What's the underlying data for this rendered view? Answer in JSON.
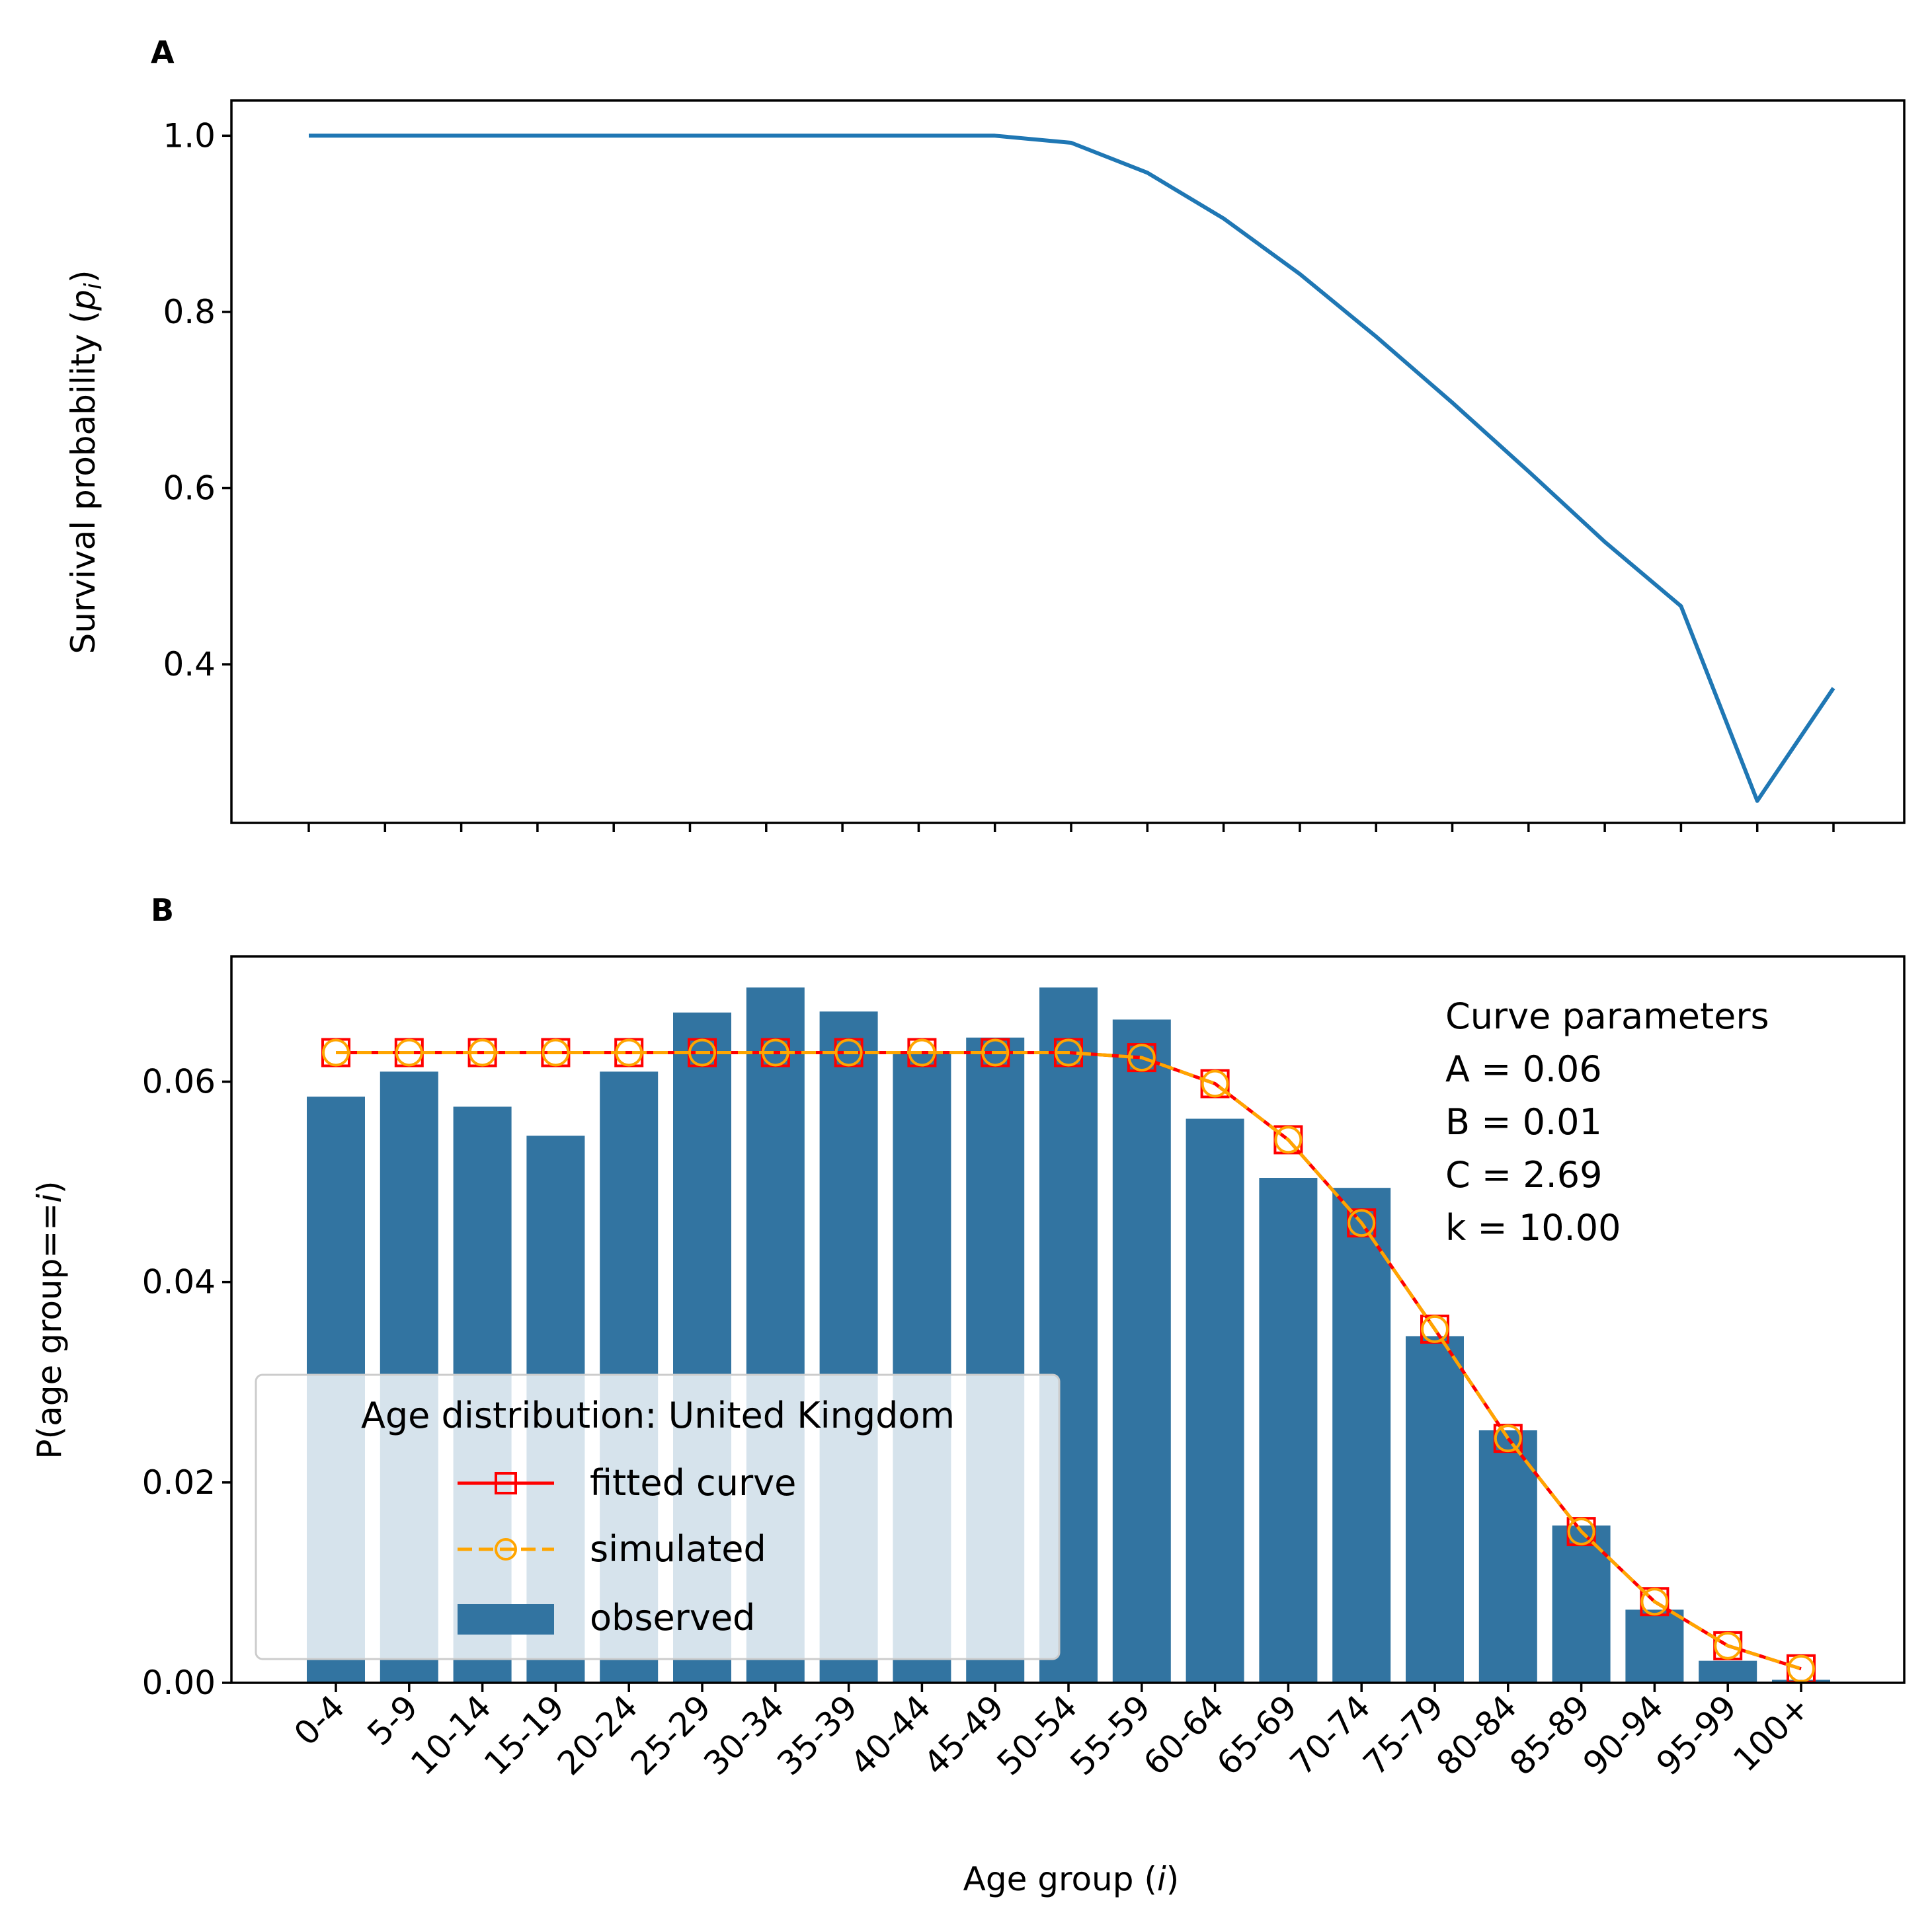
{
  "chart_data": [
    {
      "panel": "A",
      "type": "line",
      "categories": [
        "0-4",
        "5-9",
        "10-14",
        "15-19",
        "20-24",
        "25-29",
        "30-34",
        "35-39",
        "40-44",
        "45-49",
        "50-54",
        "55-59",
        "60-64",
        "65-69",
        "70-74",
        "75-79",
        "80-84",
        "85-89",
        "90-94",
        "95-99",
        "100+"
      ],
      "series": [
        {
          "color": "#1f77b4",
          "values": [
            1.0,
            1.0,
            1.0,
            1.0,
            1.0,
            1.0,
            1.0,
            1.0,
            1.0,
            1.0,
            0.992,
            0.958,
            0.906,
            0.843,
            0.772,
            0.697,
            0.619,
            0.539,
            0.466,
            0.245,
            0.373
          ]
        }
      ],
      "ylabel_prefix": "Survival probability (",
      "ylabel_var": "p",
      "ylabel_sub": "i",
      "ylabel_suffix": ")",
      "ylim": [
        0.22,
        1.04
      ],
      "yticks": [
        "0.4",
        "0.6",
        "0.8",
        "1.0"
      ],
      "grid": false
    },
    {
      "panel": "B",
      "type": "bar",
      "categories": [
        "0-4",
        "5-9",
        "10-14",
        "15-19",
        "20-24",
        "25-29",
        "30-34",
        "35-39",
        "40-44",
        "45-49",
        "50-54",
        "55-59",
        "60-64",
        "65-69",
        "70-74",
        "75-79",
        "80-84",
        "85-89",
        "90-94",
        "95-99",
        "100+"
      ],
      "series": [
        {
          "name": "observed",
          "kind": "bar",
          "color": "#3274a1",
          "values": [
            0.0585,
            0.061,
            0.0575,
            0.0546,
            0.061,
            0.0669,
            0.0694,
            0.067,
            0.0628,
            0.0644,
            0.0694,
            0.0662,
            0.0563,
            0.0504,
            0.0494,
            0.0346,
            0.0252,
            0.0157,
            0.0073,
            0.0022,
            0.0003
          ]
        },
        {
          "name": "fitted curve",
          "kind": "line-square",
          "color": "#ff0000",
          "values": [
            0.0629,
            0.0629,
            0.0629,
            0.0629,
            0.0629,
            0.0629,
            0.0629,
            0.0629,
            0.0629,
            0.0629,
            0.0629,
            0.0624,
            0.0598,
            0.0542,
            0.0459,
            0.0353,
            0.0244,
            0.0151,
            0.0081,
            0.0037,
            0.0014
          ]
        },
        {
          "name": "simulated",
          "kind": "dashed-circle",
          "color": "#ffa500",
          "values": [
            0.0629,
            0.0629,
            0.0629,
            0.0629,
            0.0629,
            0.0629,
            0.0629,
            0.0629,
            0.0629,
            0.0629,
            0.0629,
            0.0624,
            0.0598,
            0.0542,
            0.0459,
            0.0353,
            0.0244,
            0.0151,
            0.0081,
            0.0037,
            0.0014
          ]
        }
      ],
      "xlabel_prefix": "Age group (",
      "xlabel_var": "i",
      "xlabel_suffix": ")",
      "ylabel_prefix": "P(age group==",
      "ylabel_var": "i",
      "ylabel_suffix": ")",
      "ylim": [
        0,
        0.0725
      ],
      "yticks": [
        "0.00",
        "0.02",
        "0.04",
        "0.06"
      ],
      "grid": false,
      "legend": {
        "title": "Age distribution: United Kingdom",
        "placement": "lower-left",
        "entries": [
          "fitted curve",
          "simulated",
          "observed"
        ]
      },
      "annotation": [
        "Curve parameters",
        "A = 0.06",
        "B = 0.01",
        "C = 2.69",
        "k = 10.00"
      ]
    }
  ]
}
